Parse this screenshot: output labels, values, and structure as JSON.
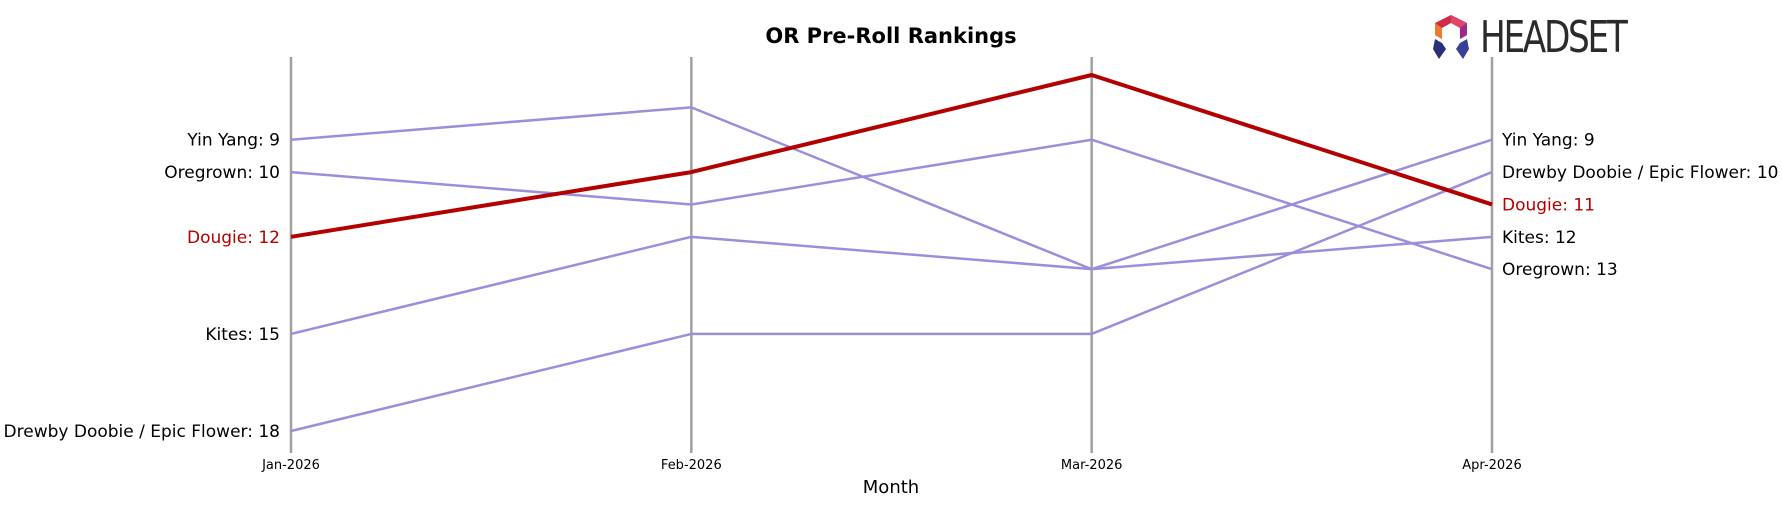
{
  "brand": {
    "wordmark": "HEADSET"
  },
  "chart_data": {
    "type": "line",
    "title": "OR Pre-Roll Rankings",
    "xlabel": "Month",
    "ylabel": "",
    "x": [
      "Jan-2026",
      "Feb-2026",
      "Mar-2026",
      "Apr-2026"
    ],
    "ylim": [
      6,
      19
    ],
    "y_inverted": true,
    "highlight_color": "#b30000",
    "series_color": "#9b8fdc",
    "axis_line_color": "#a0a0a0",
    "series": [
      {
        "name": "Yin Yang",
        "values": [
          9,
          8,
          13,
          9
        ],
        "start_label": "Yin Yang: 9",
        "end_label": "Yin Yang: 9",
        "highlight": false
      },
      {
        "name": "Oregrown",
        "values": [
          10,
          11,
          9,
          13
        ],
        "start_label": "Oregrown: 10",
        "end_label": "Oregrown: 13",
        "highlight": false
      },
      {
        "name": "Kites",
        "values": [
          15,
          12,
          13,
          12
        ],
        "start_label": "Kites: 15",
        "end_label": "Kites: 12",
        "highlight": false
      },
      {
        "name": "Drewby Doobie / Epic Flower",
        "values": [
          18,
          15,
          15,
          10
        ],
        "start_label": "Drewby Doobie / Epic Flower: 18",
        "end_label": "Drewby Doobie / Epic Flower: 10",
        "highlight": false
      },
      {
        "name": "Dougie",
        "values": [
          12,
          10,
          7,
          11
        ],
        "start_label": "Dougie: 12",
        "end_label": "Dougie: 11",
        "highlight": true
      }
    ]
  }
}
